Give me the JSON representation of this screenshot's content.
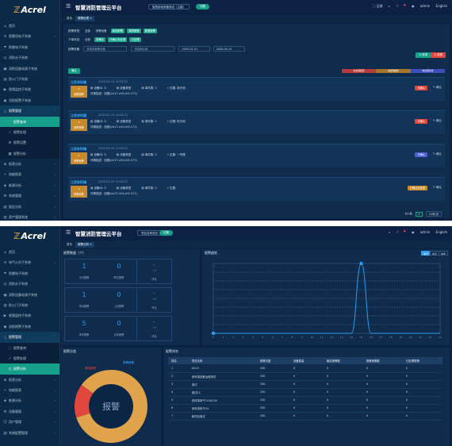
{
  "shared": {
    "logo": "Acrel",
    "username": "admin"
  },
  "s1": {
    "app_title": "智慧消防管理云平台",
    "project_select": "智慧用电采集测试（主楼）",
    "switch_label": "切换",
    "header_right": {
      "fullscreen": "全屏",
      "lang": "English"
    },
    "tabs": [
      "首页",
      "报警处理 ×"
    ],
    "sidebar": [
      {
        "label": "首页",
        "icon": "⌂"
      },
      {
        "label": "智慧用电子系统",
        "icon": "≋",
        "chev": "›"
      },
      {
        "label": "防雷电子系统",
        "icon": "☂"
      },
      {
        "label": "消防水子系统",
        "icon": "◎"
      },
      {
        "label": "消防设备电源子系统",
        "icon": "▣"
      },
      {
        "label": "防火门子系统",
        "icon": "▤"
      },
      {
        "label": "视频监控子系统",
        "icon": "▶"
      },
      {
        "label": "消防报警子系统",
        "icon": "◉"
      },
      {
        "label": "报警管理",
        "icon": "△",
        "chev": "ˇ",
        "open": true
      },
      {
        "label": "报警查询",
        "icon": "◌",
        "sub": true,
        "active": true
      },
      {
        "label": "报警处理",
        "icon": "✓",
        "sub": true
      },
      {
        "label": "报警设置",
        "icon": "⚙",
        "sub": true
      },
      {
        "label": "报警分析",
        "icon": "▦",
        "sub": true
      },
      {
        "label": "报表分析",
        "icon": "≣",
        "chev": "›"
      },
      {
        "label": "电能报表",
        "icon": "⚡",
        "chev": "›"
      },
      {
        "label": "能源分析",
        "icon": "◈",
        "chev": "›"
      },
      {
        "label": "系统管理",
        "icon": "⚙",
        "chev": "›"
      },
      {
        "label": "报告分析",
        "icon": "▤",
        "chev": "›"
      },
      {
        "label": "资产管理系统",
        "icon": "▥",
        "chev": "›"
      }
    ],
    "filters": {
      "row1_label": "报警类型",
      "row1_chips": [
        "全部",
        "报警设备",
        "离线报警",
        "故障报警",
        "数据报警"
      ],
      "row1_active": [
        2,
        3,
        4
      ],
      "row2_label": "下单状态",
      "row2_chips": [
        "全部",
        "未确认",
        "已确认未处理",
        "已处理"
      ],
      "row2_active": [
        1,
        2,
        3
      ],
      "row3_label": "报警设备",
      "device_placeholder": "请选择报警设备",
      "region_placeholder": "请选择区域",
      "date_from": "2020-01-01",
      "date_to": "2020-04-15",
      "query_label": "Q 查询",
      "reset_label": "↻ 重置",
      "confirm_label": "确认",
      "legend": [
        "未处理报警",
        "未处理故障",
        "未处理离线"
      ]
    },
    "cards": [
      {
        "title": "江苏安科瑞",
        "time": "2020-04-15 15:04:22",
        "type": "报警报警",
        "device": "设备ID: 0",
        "category": "设备类型",
        "count": "事件数: 2",
        "place": "位置: 新天地",
        "desc": "详情描述：回路(ch17-ch3,ch5.171)",
        "status": "未确认",
        "status_color": "#e0463b",
        "confirm": "确认"
      },
      {
        "title": "江苏安科瑞",
        "time": "2020-04-15 15:04:22",
        "type": "报警报警",
        "device": "设备ID: 0",
        "category": "设备类型",
        "count": "事件数: 2",
        "place": "位置: 旺天地",
        "desc": "详情描述：回路(ch17-ch3,ch5.171)",
        "status": "未确认",
        "status_color": "#e0463b",
        "confirm": "确认"
      },
      {
        "title": "江苏安科瑞",
        "time": "2020-04-15 15:04:22",
        "type": "报警报警",
        "device": "设备ID: 0",
        "category": "设备类型",
        "count": "事件数: 2",
        "place": "位置: 一号楼",
        "desc": "详情描述：回路(ch17-ch3,ch5.171)",
        "status": "已确认",
        "status_color": "#4a5fd6",
        "confirm": "确认"
      },
      {
        "title": "江苏安科瑞",
        "time": "2020-04-15 15:04:22",
        "type": "报警报警",
        "device": "设备ID: 0",
        "category": "设备类型",
        "count": "事件数: 2",
        "place": "位置:",
        "desc": "详情描述：回路(ch17-ch3,ch5.171)",
        "status": "已确认未处理",
        "status_color": "#c8892a",
        "confirm": "确认"
      }
    ],
    "pager": {
      "total": "共1条",
      "page": "1",
      "size": "10条/页"
    }
  },
  "s2": {
    "app_title": "智慧消防管理云平台",
    "project_select": "项目名称测试",
    "switch_label": "切换",
    "tabs": [
      "首页",
      "报警分析 ×"
    ],
    "sidebar": [
      {
        "label": "首页",
        "icon": "⌂"
      },
      {
        "label": "电气火灾子系统",
        "icon": "≋",
        "chev": "›"
      },
      {
        "label": "防雷电子系统",
        "icon": "☂"
      },
      {
        "label": "消防水子系统",
        "icon": "◎"
      },
      {
        "label": "消防设备电源子系统",
        "icon": "▣"
      },
      {
        "label": "防火门子系统",
        "icon": "▤"
      },
      {
        "label": "视频监控子系统",
        "icon": "▶"
      },
      {
        "label": "消防报警子系统",
        "icon": "◉"
      },
      {
        "label": "报警管理",
        "icon": "△",
        "chev": "ˇ",
        "open": true
      },
      {
        "label": "报警查询",
        "icon": "◌",
        "sub": true
      },
      {
        "label": "报警处理",
        "icon": "✓",
        "sub": true
      },
      {
        "label": "报警分析",
        "icon": "▦",
        "sub": true,
        "active": true
      },
      {
        "label": "报表分析",
        "icon": "≣",
        "chev": "›"
      },
      {
        "label": "电能报表",
        "icon": "⚡",
        "chev": "›"
      },
      {
        "label": "能源分析",
        "icon": "◈",
        "chev": "›"
      },
      {
        "label": "设备管理",
        "icon": "⚙",
        "chev": "›"
      },
      {
        "label": "用户管理",
        "icon": "☺",
        "chev": "›"
      },
      {
        "label": "系统配置管理",
        "icon": "▤",
        "chev": "›"
      }
    ],
    "stats_title": "报警数量（个）",
    "stats": [
      {
        "num": "1",
        "label": "今日报警",
        "num2": "0",
        "label2": "昨日报警",
        "ratio_up": "↑-",
        "ratio_down": "+0",
        "ratio_label": "环比"
      },
      {
        "num": "1",
        "label": "本月报警",
        "num2": "0",
        "label2": "上月报警",
        "ratio_up": "↑-",
        "ratio_down": "+0",
        "ratio_label": "环比"
      },
      {
        "num": "5",
        "label": "本年报警",
        "num2": "0",
        "label2": "去年报警",
        "ratio_up": "↑-",
        "ratio_down": "+0",
        "ratio_label": "环比"
      }
    ],
    "trend_title": "报警趋势",
    "range_buttons": [
      "本日",
      "本月",
      "本年"
    ],
    "type_title": "报警分类",
    "rank_title": "报警排名",
    "donut_center": "报警",
    "donut_labels": [
      "报警报警",
      "漏电报警"
    ],
    "rank_headers": [
      "排名",
      "项目名称",
      "报警次数",
      "设备数量",
      "离线报警数",
      "报警报警数",
      "已处理报警"
    ],
    "rank_rows": [
      [
        "1",
        "ACLH",
        "100",
        "0",
        "0",
        "0",
        "0"
      ],
      [
        "2",
        "安科瑞设备运维测试",
        "100",
        "0",
        "0",
        "0",
        "0"
      ],
      [
        "3",
        "测试",
        "100",
        "0",
        "0",
        "0",
        "0"
      ],
      [
        "4",
        "测试11",
        "100",
        "0",
        "0",
        "0",
        "0"
      ],
      [
        "5",
        "安科瑞电气1416134",
        "100",
        "0",
        "0",
        "0",
        "0"
      ],
      [
        "6",
        "安科瑞电气24",
        "100",
        "0",
        "0",
        "0",
        "0"
      ],
      [
        "7",
        "新项目测试",
        "100",
        "0",
        "0",
        "0",
        "0"
      ]
    ]
  },
  "chart_data": [
    {
      "type": "line",
      "x": [
        0,
        1,
        2,
        3,
        4,
        5,
        6,
        7,
        8,
        9,
        10,
        11,
        12,
        13,
        14,
        15,
        16,
        17,
        18,
        19,
        20,
        21,
        22,
        23
      ],
      "series": [
        {
          "values": [
            0,
            0,
            0,
            0,
            0,
            0,
            0,
            0,
            0,
            0,
            0,
            0,
            0,
            0,
            0,
            1,
            0,
            0,
            0,
            0,
            0,
            0,
            0,
            0
          ]
        }
      ],
      "ylim": [
        0,
        1
      ],
      "grid": true,
      "colors": {
        "line": "#2e9cf0",
        "grid": "#6e86a0"
      }
    },
    {
      "type": "pie",
      "categories": [
        "报警报警",
        "漏电报警"
      ],
      "values": [
        85,
        15
      ],
      "colors": [
        "#e0a24a",
        "#e0463b"
      ]
    }
  ]
}
